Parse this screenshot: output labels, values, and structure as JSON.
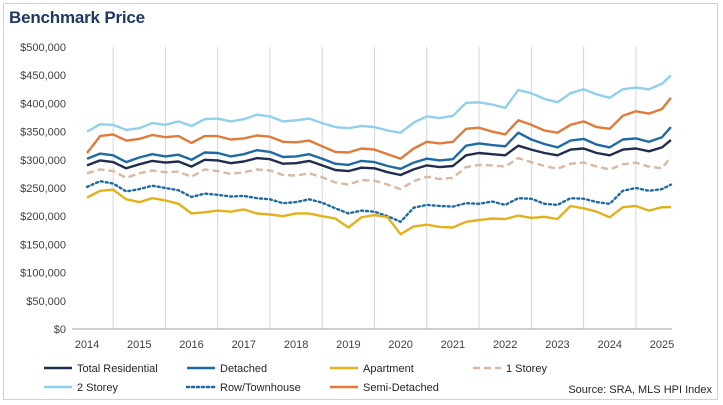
{
  "title": "Benchmark Price",
  "source": "Source: SRA, MLS HPI Index",
  "chart_data": {
    "type": "line",
    "title": "Benchmark Price",
    "xlabel": "",
    "ylabel": "",
    "ylim": [
      0,
      500000
    ],
    "yticks": [
      0,
      50000,
      100000,
      150000,
      200000,
      250000,
      300000,
      350000,
      400000,
      450000,
      500000
    ],
    "ytick_labels": [
      "$0",
      "$50,000",
      "$100,000",
      "$150,000",
      "$200,000",
      "$250,000",
      "$300,000",
      "$350,000",
      "$400,000",
      "$450,000",
      "$500,000"
    ],
    "xlim": [
      2014.0,
      2025.17
    ],
    "xticks": [
      2014,
      2015,
      2016,
      2017,
      2018,
      2019,
      2020,
      2021,
      2022,
      2023,
      2024,
      2025
    ],
    "xtick_labels": [
      "2014",
      "2015",
      "2016",
      "2017",
      "2018",
      "2019",
      "2020",
      "2021",
      "2022",
      "2023",
      "2024",
      "2025"
    ],
    "grid": "vertical",
    "legend": "bottom",
    "x": [
      2014.0,
      2014.25,
      2014.5,
      2014.75,
      2015.0,
      2015.25,
      2015.5,
      2015.75,
      2016.0,
      2016.25,
      2016.5,
      2016.75,
      2017.0,
      2017.25,
      2017.5,
      2017.75,
      2018.0,
      2018.25,
      2018.5,
      2018.75,
      2019.0,
      2019.25,
      2019.5,
      2019.75,
      2020.0,
      2020.25,
      2020.5,
      2020.75,
      2021.0,
      2021.25,
      2021.5,
      2021.75,
      2022.0,
      2022.25,
      2022.5,
      2022.75,
      2023.0,
      2023.25,
      2023.5,
      2023.75,
      2024.0,
      2024.25,
      2024.5,
      2024.75,
      2025.0,
      2025.17
    ],
    "series": [
      {
        "name": "Total Residential",
        "color": "#1f2d4e",
        "dash": "solid",
        "values": [
          290000,
          299000,
          296000,
          285000,
          292000,
          298000,
          295000,
          297000,
          288000,
          300000,
          299000,
          294000,
          297000,
          303000,
          301000,
          293000,
          294000,
          298000,
          290000,
          282000,
          280000,
          286000,
          285000,
          278000,
          273000,
          283000,
          290000,
          287000,
          289000,
          308000,
          312000,
          310000,
          308000,
          325000,
          318000,
          312000,
          308000,
          318000,
          320000,
          312000,
          308000,
          318000,
          320000,
          315000,
          322000,
          335000
        ]
      },
      {
        "name": "Detached",
        "color": "#1f6aa5",
        "dash": "solid",
        "values": [
          302000,
          311000,
          308000,
          296000,
          304000,
          310000,
          306000,
          309000,
          300000,
          313000,
          312000,
          306000,
          310000,
          317000,
          314000,
          305000,
          306000,
          310000,
          302000,
          293000,
          291000,
          298000,
          296000,
          289000,
          284000,
          295000,
          302000,
          299000,
          301000,
          325000,
          329000,
          326000,
          324000,
          348000,
          336000,
          328000,
          322000,
          334000,
          337000,
          327000,
          322000,
          336000,
          338000,
          332000,
          340000,
          358000
        ]
      },
      {
        "name": "Apartment",
        "color": "#e3b11c",
        "dash": "solid",
        "values": [
          233000,
          245000,
          247000,
          230000,
          225000,
          232000,
          228000,
          222000,
          205000,
          207000,
          210000,
          208000,
          212000,
          205000,
          203000,
          200000,
          205000,
          205000,
          200000,
          196000,
          180000,
          198000,
          202000,
          198000,
          168000,
          182000,
          185000,
          181000,
          180000,
          190000,
          193000,
          196000,
          195000,
          201000,
          197000,
          199000,
          195000,
          218000,
          214000,
          208000,
          198000,
          216000,
          218000,
          210000,
          216000,
          216000
        ]
      },
      {
        "name": "1 Storey",
        "color": "#d9b8a4",
        "dash": "dash",
        "values": [
          276000,
          283000,
          280000,
          268000,
          276000,
          281000,
          278000,
          279000,
          270000,
          283000,
          280000,
          275000,
          278000,
          283000,
          281000,
          273000,
          272000,
          276000,
          269000,
          260000,
          256000,
          264000,
          263000,
          256000,
          248000,
          262000,
          270000,
          266000,
          268000,
          287000,
          291000,
          290000,
          288000,
          303000,
          296000,
          289000,
          284000,
          293000,
          295000,
          288000,
          283000,
          292000,
          295000,
          288000,
          285000,
          305000
        ]
      },
      {
        "name": "2 Storey",
        "color": "#8fd1ec",
        "dash": "solid",
        "values": [
          350000,
          363000,
          362000,
          353000,
          356000,
          365000,
          362000,
          368000,
          360000,
          372000,
          373000,
          368000,
          372000,
          380000,
          377000,
          368000,
          370000,
          373000,
          365000,
          358000,
          356000,
          360000,
          358000,
          352000,
          348000,
          366000,
          377000,
          374000,
          378000,
          401000,
          402000,
          398000,
          392000,
          424000,
          418000,
          408000,
          402000,
          418000,
          425000,
          416000,
          410000,
          425000,
          428000,
          425000,
          435000,
          450000
        ]
      },
      {
        "name": "Row/Townhouse",
        "color": "#1f6aa5",
        "dash": "dot",
        "values": [
          252000,
          262000,
          258000,
          244000,
          248000,
          254000,
          250000,
          246000,
          234000,
          240000,
          238000,
          235000,
          236000,
          232000,
          230000,
          223000,
          225000,
          230000,
          224000,
          214000,
          205000,
          210000,
          208000,
          200000,
          190000,
          215000,
          220000,
          218000,
          217000,
          223000,
          222000,
          226000,
          220000,
          232000,
          231000,
          222000,
          220000,
          232000,
          231000,
          225000,
          222000,
          245000,
          250000,
          245000,
          248000,
          256000
        ]
      },
      {
        "name": "Semi-Detached",
        "color": "#e07b39",
        "dash": "solid",
        "values": [
          312000,
          342000,
          345000,
          334000,
          337000,
          344000,
          340000,
          342000,
          330000,
          342000,
          342000,
          336000,
          338000,
          343000,
          341000,
          332000,
          331000,
          334000,
          324000,
          314000,
          313000,
          320000,
          318000,
          310000,
          302000,
          320000,
          332000,
          329000,
          332000,
          355000,
          357000,
          350000,
          345000,
          370000,
          362000,
          352000,
          348000,
          362000,
          368000,
          358000,
          355000,
          378000,
          386000,
          382000,
          390000,
          410000
        ]
      }
    ]
  }
}
